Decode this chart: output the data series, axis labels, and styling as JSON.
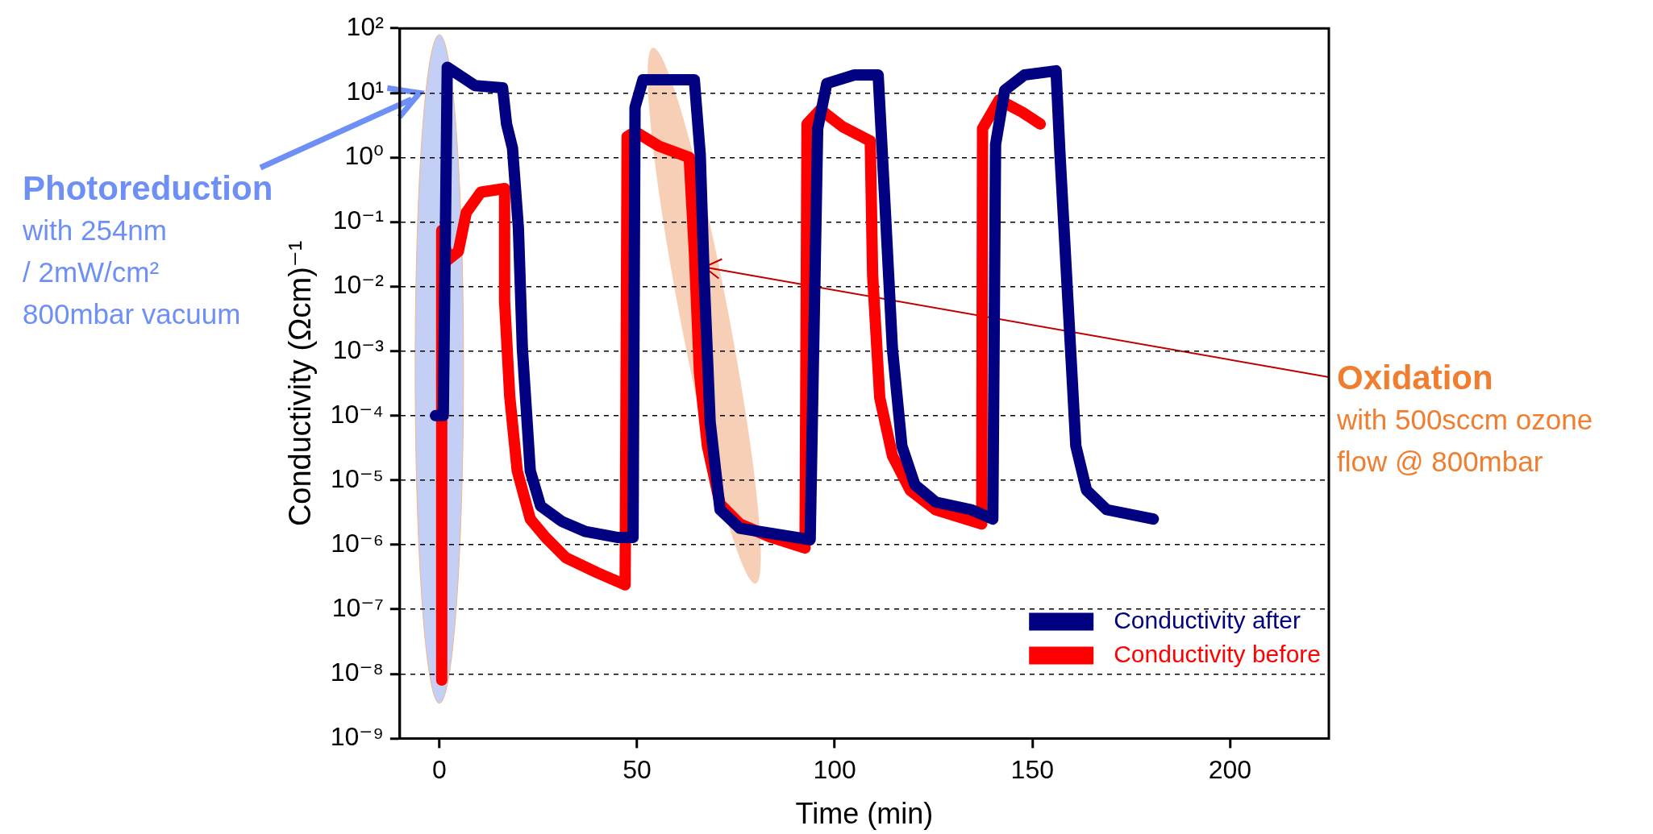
{
  "chart_data": {
    "type": "line",
    "xlabel": "Time (min)",
    "ylabel": "Conductivity (Ωcm)⁻¹",
    "xlim": [
      -10,
      225
    ],
    "xticks": [
      0,
      50,
      100,
      150,
      200
    ],
    "ylim": [
      1e-09,
      100
    ],
    "yticks": [
      {
        "value": 1e-09,
        "label": "10⁻⁹"
      },
      {
        "value": 1e-08,
        "label": "10⁻⁸"
      },
      {
        "value": 1e-07,
        "label": "10⁻⁷"
      },
      {
        "value": 1e-06,
        "label": "10⁻⁶"
      },
      {
        "value": 1e-05,
        "label": "10⁻⁵"
      },
      {
        "value": 0.0001,
        "label": "10⁻⁴"
      },
      {
        "value": 0.001,
        "label": "10⁻³"
      },
      {
        "value": 0.01,
        "label": "10⁻²"
      },
      {
        "value": 0.1,
        "label": "10⁻¹"
      },
      {
        "value": 1,
        "label": "10⁰"
      },
      {
        "value": 10,
        "label": "10¹"
      },
      {
        "value": 100,
        "label": "10²"
      }
    ],
    "log": "y",
    "grid": "y",
    "legend": "bottom right",
    "marker": "none",
    "line_style": "solid",
    "series": [
      {
        "name": "Conductivity after",
        "color": "#000080",
        "x": [
          -1,
          1,
          2,
          9,
          16,
          17,
          18.5,
          20,
          21,
          23,
          25.6,
          31,
          37,
          45,
          49,
          49.5,
          51.5,
          64.5,
          66,
          67,
          68.5,
          71,
          76,
          84,
          93.8,
          95.7,
          98,
          105,
          111,
          112.7,
          114.6,
          117,
          120.3,
          125.5,
          134.5,
          140,
          140.7,
          143,
          148,
          156,
          157,
          159,
          161,
          163.7,
          168.8,
          180.6
        ],
        "values": [
          0.0001,
          0.0001,
          25,
          13,
          12,
          3.3,
          1.4,
          0.08,
          0.0011,
          1.4e-05,
          4e-06,
          2.3e-06,
          1.6e-06,
          1.3e-06,
          1.3e-06,
          6,
          16,
          16,
          1.1,
          0.013,
          8e-05,
          3.5e-06,
          1.8e-06,
          1.5e-06,
          1.2e-06,
          2.8,
          14,
          19,
          19,
          0.2,
          0.0011,
          3.4e-05,
          8.5e-06,
          4.6e-06,
          3.5e-06,
          2.5e-06,
          1.6,
          11,
          19,
          22,
          1.1,
          0.006,
          3.4e-05,
          7e-06,
          3.5e-06,
          2.5e-06
        ]
      },
      {
        "name": "Conductivity before",
        "color": "#ff0000",
        "x": [
          0.6,
          0.6,
          2.2,
          4.8,
          6.8,
          10.5,
          16.5,
          16.5,
          17.8,
          19.7,
          23,
          26.9,
          32,
          39.9,
          47,
          47.5,
          49.6,
          55.5,
          63.2,
          64.5,
          65.8,
          67.8,
          71,
          76,
          84,
          92.5,
          93,
          96.4,
          102,
          109,
          109.6,
          111.4,
          114.6,
          119.1,
          125.5,
          137.2,
          137.4,
          141.6,
          147.5,
          152
        ],
        "values": [
          8e-09,
          0.074,
          0.026,
          0.035,
          0.14,
          0.29,
          0.33,
          0.006,
          0.0002,
          1.4e-05,
          2.5e-06,
          1.3e-06,
          6.3e-07,
          3.7e-07,
          2.4e-07,
          2.1,
          2.5,
          1.5,
          1,
          0.035,
          0.00046,
          3.4e-05,
          4.3e-06,
          2.1e-06,
          1.3e-06,
          8.9e-07,
          3.3,
          5.5,
          3,
          1.8,
          0.015,
          0.00019,
          2.4e-05,
          7e-06,
          3.5e-06,
          2.1e-06,
          2.8,
          7.8,
          5,
          3.3
        ]
      }
    ],
    "annotations": [
      "Photoreduction\nwith 254nm\n/ 2mW/cm²\n800mbar vacuum",
      "Oxidation\nwith 500sccm ozone\nflow @ 800mbar"
    ]
  }
}
